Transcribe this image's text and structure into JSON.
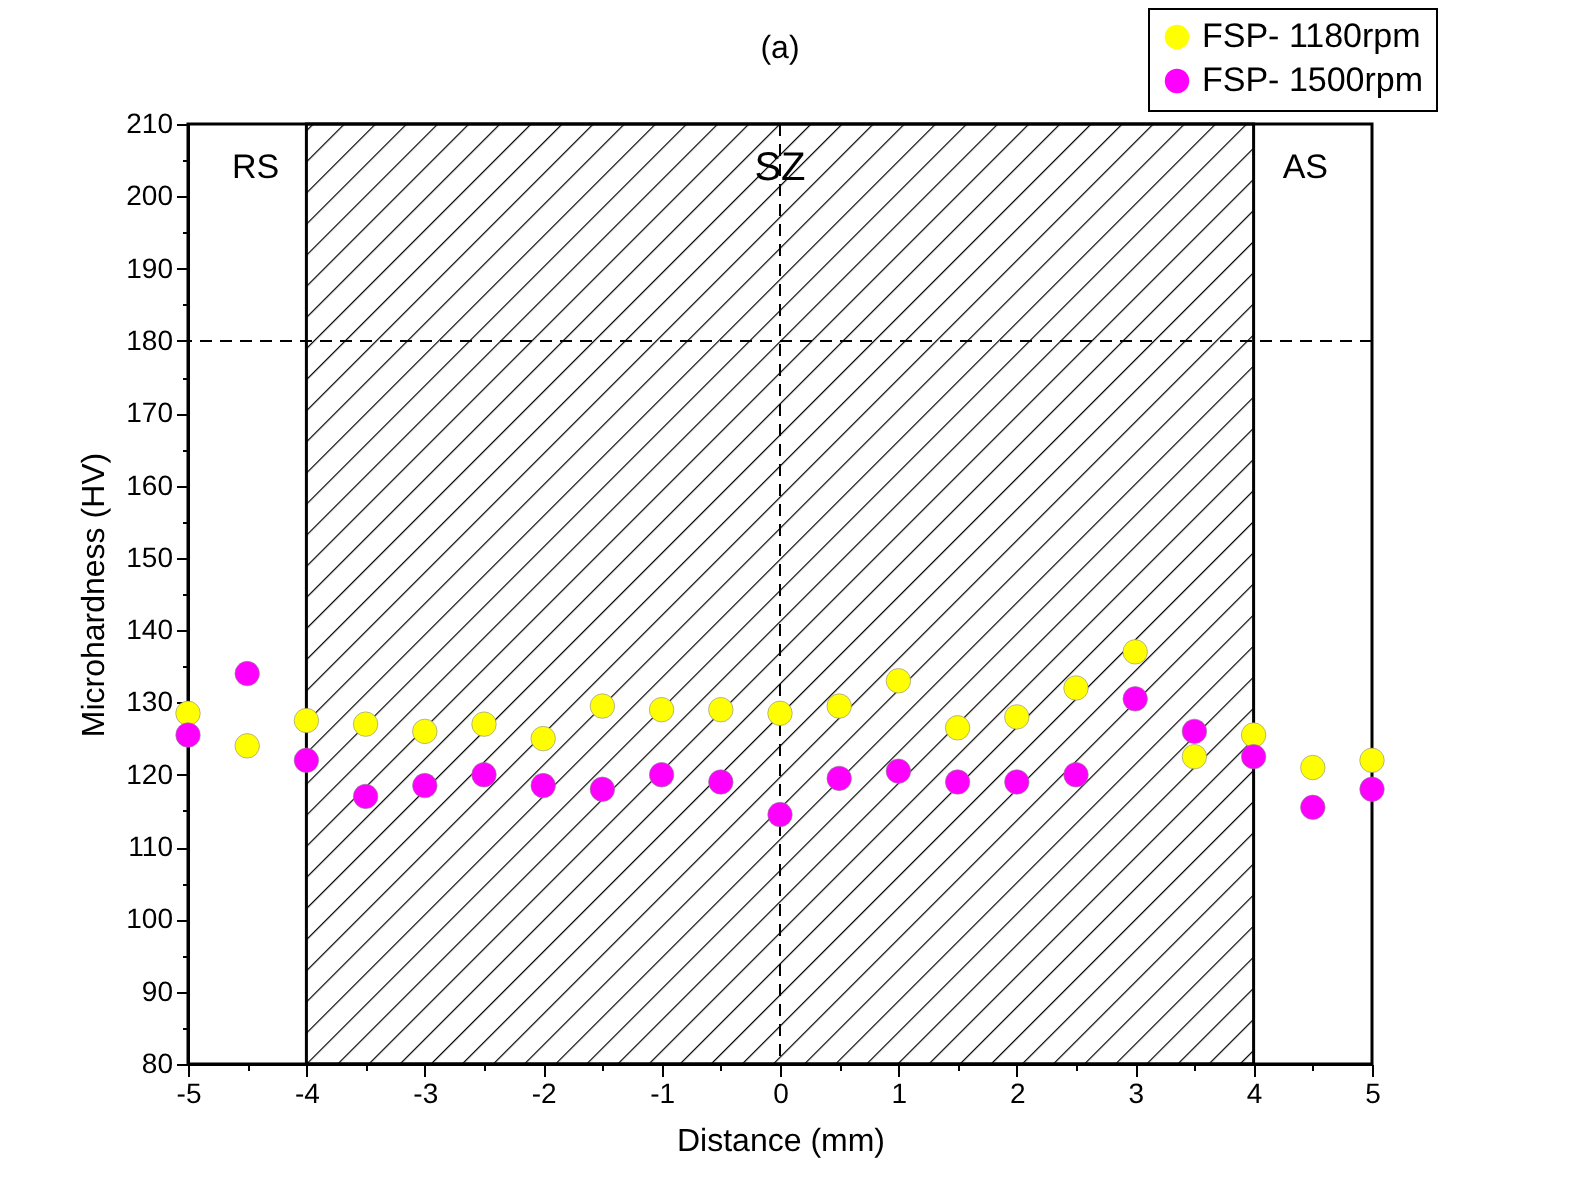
{
  "chart_data": {
    "type": "scatter",
    "title": "(a)",
    "xlabel": "Distance (mm)",
    "ylabel": "Microhardness (HV)",
    "x": [
      -5,
      -4.5,
      -4,
      -3.5,
      -3,
      -2.5,
      -2,
      -1.5,
      -1,
      -0.5,
      0,
      0.5,
      1,
      1.5,
      2,
      2.5,
      3,
      3.5,
      4,
      4.5,
      5
    ],
    "series": [
      {
        "name": "FSP- 1180rpm",
        "color": "#ffff00",
        "values": [
          128.5,
          124,
          127.5,
          127,
          126,
          127,
          125,
          129.5,
          129,
          129,
          128.5,
          129.5,
          133,
          126.5,
          128,
          132,
          137,
          122.5,
          125.5,
          121,
          122
        ]
      },
      {
        "name": "FSP- 1500rpm",
        "color": "#ff00ff",
        "values": [
          125.5,
          134,
          122,
          117,
          118.5,
          120,
          118.5,
          118,
          120,
          119,
          114.5,
          119.5,
          120.5,
          119,
          119,
          120,
          130.5,
          126,
          122.5,
          115.5,
          118
        ]
      }
    ],
    "xlim": [
      -5,
      5
    ],
    "ylim": [
      80,
      210
    ],
    "xticks": [
      -5,
      {
        "value": -4.5,
        "label": null
      },
      -4,
      {
        "value": -3.5,
        "label": null
      },
      -3,
      {
        "value": -2.5,
        "label": null
      },
      -2,
      {
        "value": -1.5,
        "label": null
      },
      -1,
      {
        "value": -0.5,
        "label": null
      },
      0,
      {
        "value": 0.5,
        "label": null
      },
      1,
      {
        "value": 1.5,
        "label": null
      },
      2,
      {
        "value": 2.5,
        "label": null
      },
      3,
      {
        "value": 3.5,
        "label": null
      },
      4,
      {
        "value": 4.5,
        "label": null
      },
      5
    ],
    "yticks": [
      80,
      {
        "value": 85,
        "label": null
      },
      90,
      {
        "value": 95,
        "label": null
      },
      100,
      {
        "value": 105,
        "label": null
      },
      110,
      {
        "value": 115,
        "label": null
      },
      120,
      {
        "value": 125,
        "label": null
      },
      130,
      {
        "value": 135,
        "label": null
      },
      140,
      {
        "value": 145,
        "label": null
      },
      150,
      {
        "value": 155,
        "label": null
      },
      160,
      {
        "value": 165,
        "label": null
      },
      170,
      {
        "value": 175,
        "label": null
      },
      180,
      {
        "value": 185,
        "label": null
      },
      190,
      {
        "value": 195,
        "label": null
      },
      200,
      {
        "value": 205,
        "label": null
      },
      210
    ],
    "bands": [
      {
        "axis": "x",
        "from": -4,
        "to": 4,
        "label": "SZ",
        "color": "#000000"
      }
    ],
    "ref_lines": [
      {
        "axis": "y",
        "value": 180,
        "line_style": "dashed"
      },
      {
        "axis": "x",
        "value": 0,
        "line_style": "dashed"
      }
    ],
    "annotations": [
      "RS",
      "AS"
    ],
    "marker": "circle",
    "grid": false,
    "legend": "top right"
  }
}
